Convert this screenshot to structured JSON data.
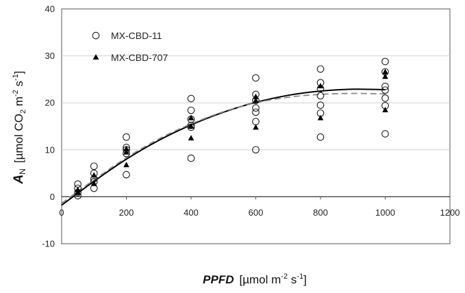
{
  "chart_data": {
    "type": "scatter",
    "x_label": {
      "main": "PPFD",
      "unit_open": "[µmol m",
      "unit_exp1": "-2",
      "unit_mid": " s",
      "unit_exp2": "-1",
      "unit_close": "]"
    },
    "y_label": {
      "main": "A",
      "main_sub": "N",
      "unit_open": "[µmol CO",
      "unit_sub": "2",
      "unit_mid1": " m",
      "unit_exp1": "-2",
      "unit_mid2": " s",
      "unit_exp2": "-1",
      "unit_close": "]"
    },
    "xlim": [
      0,
      1200
    ],
    "ylim": [
      -10,
      40
    ],
    "x_ticks": [
      "0",
      "200",
      "400",
      "600",
      "800",
      "1000",
      "1200"
    ],
    "y_ticks": [
      "-10",
      "0",
      "10",
      "20",
      "30",
      "40"
    ],
    "grid": "horizontal",
    "legend_position": "top-left",
    "series": [
      {
        "name": "MX-CBD-11",
        "marker": "circle-open",
        "points": [
          [
            50,
            2.7
          ],
          [
            50,
            1.8
          ],
          [
            50,
            0.9
          ],
          [
            50,
            0.2
          ],
          [
            100,
            6.5
          ],
          [
            100,
            5.0
          ],
          [
            100,
            3.8
          ],
          [
            100,
            3.2
          ],
          [
            100,
            1.8
          ],
          [
            200,
            12.7
          ],
          [
            200,
            10.5
          ],
          [
            200,
            10.0
          ],
          [
            200,
            9.2
          ],
          [
            200,
            4.7
          ],
          [
            400,
            20.9
          ],
          [
            400,
            18.4
          ],
          [
            400,
            16.5
          ],
          [
            400,
            15.2
          ],
          [
            400,
            14.8
          ],
          [
            400,
            8.2
          ],
          [
            600,
            25.3
          ],
          [
            600,
            21.8
          ],
          [
            600,
            20.5
          ],
          [
            600,
            18.9
          ],
          [
            600,
            18.0
          ],
          [
            600,
            16.0
          ],
          [
            600,
            10.0
          ],
          [
            800,
            27.2
          ],
          [
            800,
            24.3
          ],
          [
            800,
            23.0
          ],
          [
            800,
            21.5
          ],
          [
            800,
            19.5
          ],
          [
            800,
            17.8
          ],
          [
            800,
            12.7
          ],
          [
            1000,
            28.8
          ],
          [
            1000,
            26.6
          ],
          [
            1000,
            23.5
          ],
          [
            1000,
            22.7
          ],
          [
            1000,
            21.0
          ],
          [
            1000,
            19.4
          ],
          [
            1000,
            13.4
          ]
        ]
      },
      {
        "name": "MX-CBD-707",
        "marker": "triangle-filled",
        "points": [
          [
            50,
            1.5
          ],
          [
            50,
            0.9
          ],
          [
            100,
            4.6
          ],
          [
            100,
            2.8
          ],
          [
            200,
            10.2
          ],
          [
            200,
            9.5
          ],
          [
            200,
            6.8
          ],
          [
            400,
            16.8
          ],
          [
            400,
            15.0
          ],
          [
            400,
            12.5
          ],
          [
            600,
            21.3
          ],
          [
            600,
            20.5
          ],
          [
            600,
            14.8
          ],
          [
            800,
            23.6
          ],
          [
            800,
            16.8
          ],
          [
            1000,
            26.6
          ],
          [
            1000,
            25.6
          ],
          [
            1000,
            18.5
          ]
        ]
      }
    ],
    "curves": [
      {
        "style": "solid-black",
        "points": [
          [
            0,
            -1.8
          ],
          [
            100,
            3.3
          ],
          [
            200,
            8.0
          ],
          [
            300,
            12.0
          ],
          [
            400,
            15.3
          ],
          [
            500,
            18.0
          ],
          [
            600,
            20.1
          ],
          [
            700,
            21.6
          ],
          [
            800,
            22.5
          ],
          [
            900,
            22.9
          ],
          [
            1000,
            22.8
          ]
        ]
      },
      {
        "style": "dashed-gray",
        "points": [
          [
            0,
            -1.4
          ],
          [
            100,
            3.6
          ],
          [
            200,
            8.3
          ],
          [
            300,
            12.3
          ],
          [
            400,
            15.5
          ],
          [
            500,
            18.1
          ],
          [
            600,
            20.0
          ],
          [
            700,
            21.2
          ],
          [
            800,
            21.8
          ],
          [
            900,
            22.0
          ],
          [
            1000,
            21.9
          ]
        ]
      }
    ]
  }
}
